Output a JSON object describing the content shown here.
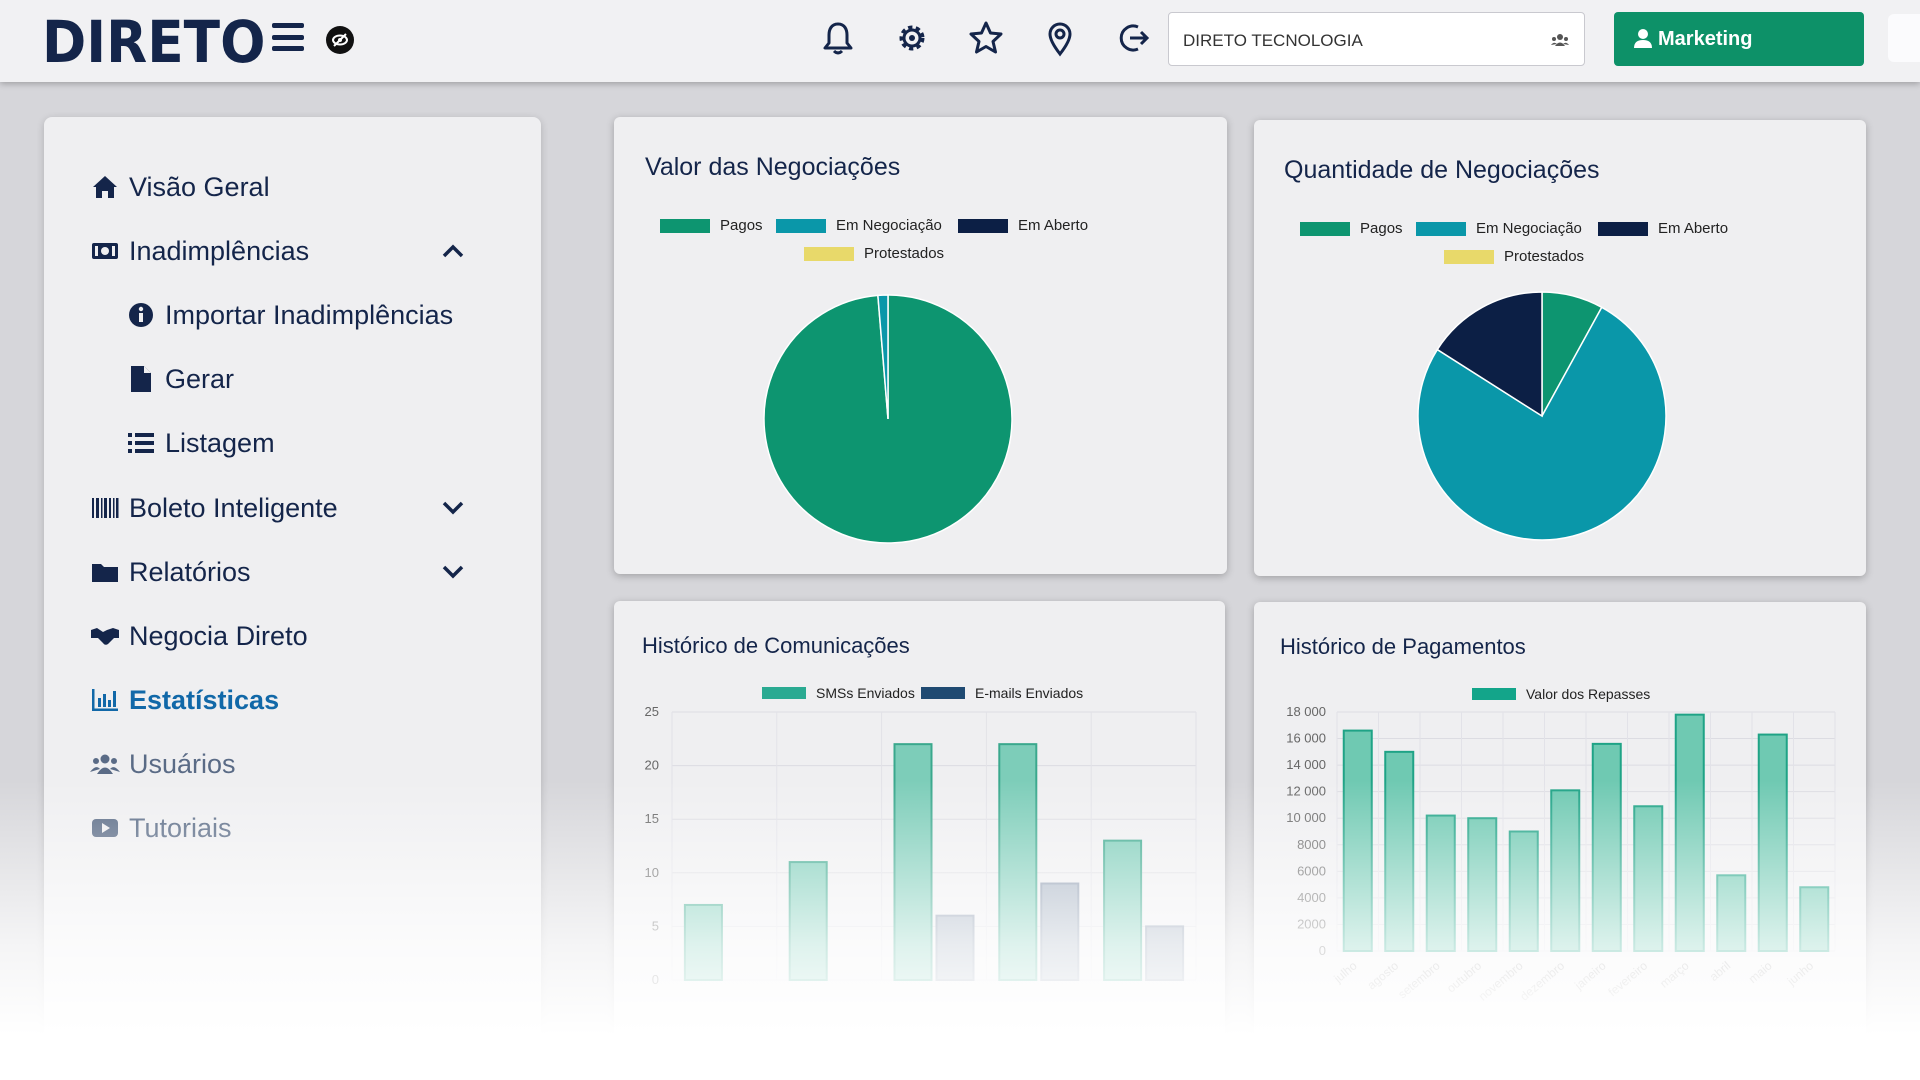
{
  "app": {
    "logo": "DIRETO",
    "company_selector": "DIRETO TECNOLOGIA",
    "user_button": "Marketing"
  },
  "header_icons": [
    "bell-icon",
    "gear-icon",
    "star-icon",
    "location-pin-icon",
    "logout-icon"
  ],
  "sidebar": {
    "items": [
      {
        "label": "Visão Geral",
        "icon": "home-icon"
      },
      {
        "label": "Inadimplências",
        "icon": "money-icon",
        "expanded": true
      },
      {
        "label": "Importar Inadimplências",
        "icon": "info-icon",
        "sub": true
      },
      {
        "label": "Gerar",
        "icon": "file-icon",
        "sub": true
      },
      {
        "label": "Listagem",
        "icon": "list-icon",
        "sub": true
      },
      {
        "label": "Boleto Inteligente",
        "icon": "barcode-icon",
        "expanded": false
      },
      {
        "label": "Relatórios",
        "icon": "folder-icon",
        "expanded": false
      },
      {
        "label": "Negocia Direto",
        "icon": "handshake-icon"
      },
      {
        "label": "Estatísticas",
        "icon": "bar-chart-icon",
        "active": true
      },
      {
        "label": "Usuários",
        "icon": "users-icon"
      },
      {
        "label": "Tutoriais",
        "icon": "video-icon"
      }
    ]
  },
  "colors": {
    "pagos": "#0d9570",
    "negociacao": "#0a97a9",
    "aberto": "#0c1f45",
    "protestados": "#e8d96a",
    "accent": "#0d9168"
  },
  "chart_data": [
    {
      "type": "pie",
      "title": "Valor das Negociações",
      "legend": [
        "Pagos",
        "Em Negociação",
        "Em Aberto",
        "Protestados"
      ],
      "values": [
        98.7,
        1.3,
        0,
        0
      ]
    },
    {
      "type": "pie",
      "title": "Quantidade de Negociações",
      "legend": [
        "Pagos",
        "Em Negociação",
        "Em Aberto",
        "Protestados"
      ],
      "values": [
        8,
        76,
        16,
        0
      ]
    },
    {
      "type": "bar",
      "title": "Histórico de Comunicações",
      "series": [
        {
          "name": "SMSs Enviados",
          "values": [
            7,
            11,
            22,
            22,
            13
          ]
        },
        {
          "name": "E-mails Enviados",
          "values": [
            0,
            0,
            6,
            9,
            5
          ]
        }
      ],
      "ylim": [
        0,
        25
      ],
      "yticks": [
        "25",
        "20",
        "15",
        "10",
        "5",
        "0"
      ]
    },
    {
      "type": "bar",
      "title": "Histórico de Pagamentos",
      "series": [
        {
          "name": "Valor dos Repasses",
          "values": [
            16600,
            15000,
            10200,
            10000,
            9000,
            12100,
            15600,
            10900,
            17800,
            5700,
            16300,
            4800
          ]
        }
      ],
      "ylim": [
        0,
        18000
      ],
      "yticks": [
        "18 000",
        "16 000",
        "14 000",
        "12 000",
        "10 000",
        "8000",
        "6000",
        "4000",
        "2000",
        "0"
      ],
      "categories": [
        "julho",
        "agosto",
        "setembro",
        "outubro",
        "novembro",
        "dezembro",
        "janeiro",
        "fevereiro",
        "março",
        "abril",
        "maio",
        "junho"
      ]
    }
  ]
}
